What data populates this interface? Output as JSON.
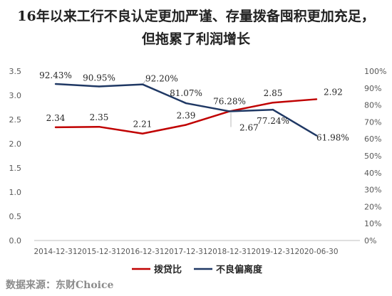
{
  "header": {
    "title_line1": "16年以来工行不良认定更加严谨、存量拨备囤积更加充足，",
    "title_line2": "但拖累了利润增长"
  },
  "footer": {
    "source": "数据来源：东财Choice"
  },
  "colors": {
    "provision": "#c00000",
    "npl_deviation": "#1f3864"
  },
  "chart_data": {
    "type": "line",
    "x": [
      "2014-12-31",
      "2015-12-31",
      "2016-12-31",
      "2017-12-31",
      "2018-12-31",
      "2019-12-31",
      "2020-06-30"
    ],
    "title": "",
    "xlabel": "",
    "ylabel": "",
    "ylim": [
      0,
      3.5
    ],
    "y_ticks": [
      "0.0",
      "0.5",
      "1.0",
      "1.5",
      "2.0",
      "2.5",
      "3.0",
      "3.5"
    ],
    "y2lim": [
      0,
      100
    ],
    "y2_ticks": [
      "0%",
      "10%",
      "20%",
      "30%",
      "40%",
      "50%",
      "60%",
      "70%",
      "80%",
      "90%",
      "100%"
    ],
    "grid": false,
    "legend_position": "bottom",
    "series": [
      {
        "name": "拨贷比",
        "axis": "left",
        "values": [
          2.34,
          2.35,
          2.21,
          2.39,
          2.67,
          2.85,
          2.92
        ],
        "labels": [
          "2.34",
          "2.35",
          "2.21",
          "2.39",
          "2.67",
          "2.85",
          "2.92"
        ]
      },
      {
        "name": "不良偏离度",
        "axis": "right",
        "values": [
          92.43,
          90.95,
          92.2,
          81.07,
          76.28,
          77.24,
          61.98
        ],
        "labels": [
          "92.43%",
          "90.95%",
          "92.20%",
          "81.07%",
          "76.28%",
          "77.24%",
          "61.98%"
        ]
      }
    ]
  }
}
